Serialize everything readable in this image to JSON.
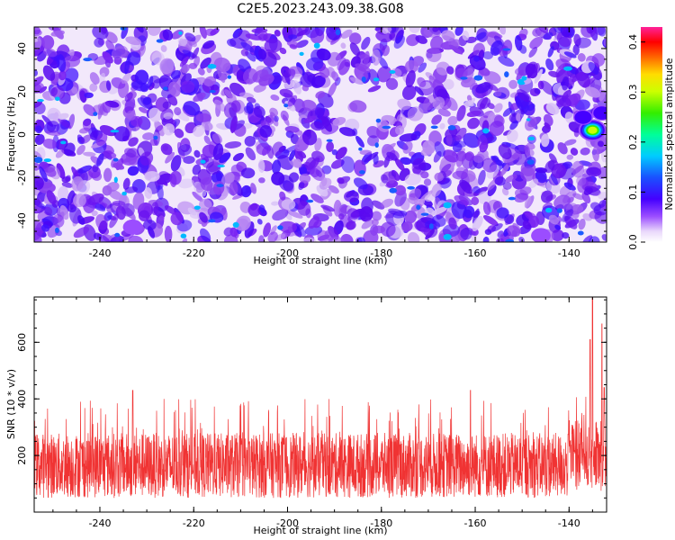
{
  "figure": {
    "title": "C2E5.2023.243.09.38.G08"
  },
  "chart_data": [
    {
      "type": "heatmap",
      "xlabel": "Height of straight line (km)",
      "ylabel": "Frequency (Hz)",
      "xlim": [
        -254,
        -132
      ],
      "ylim": [
        -50,
        50
      ],
      "xticks": [
        "-240",
        "-220",
        "-200",
        "-180",
        "-160",
        "-140"
      ],
      "yticks": [
        "40",
        "20",
        "0",
        "-20",
        "-40"
      ],
      "colorbar": {
        "label": "Normalized spectral amplitude",
        "range": [
          0.0,
          0.43
        ],
        "ticks": [
          "0.0",
          "0.1",
          "0.2",
          "0.3",
          "0.4"
        ],
        "colormap": "rainbow (white → violet → blue → cyan → green → yellow → red → magenta)"
      },
      "hotspots": [
        {
          "x": -135,
          "y": 2,
          "value": 0.33
        },
        {
          "x": -133,
          "y": 10,
          "value": 0.12
        },
        {
          "x": -137,
          "y": 8,
          "value": 0.1
        },
        {
          "x": -146,
          "y": -47,
          "value": 0.08
        },
        {
          "x": -233,
          "y": -43,
          "value": 0.07
        }
      ],
      "background_level": 0.04,
      "grid": false
    },
    {
      "type": "line",
      "xlabel": "Height of straight line (km)",
      "ylabel": "SNR (10 * v/v)",
      "xlim": [
        -254,
        -132
      ],
      "ylim": [
        0,
        760
      ],
      "xticks": [
        "-240",
        "-220",
        "-200",
        "-180",
        "-160",
        "-140"
      ],
      "yticks": [
        "200",
        "400",
        "600"
      ],
      "series": [
        {
          "color": "#f03333",
          "typical_range": [
            50,
            280
          ],
          "peak_spikes_upper": 400
        }
      ],
      "peaks": [
        {
          "x": -135,
          "y": 760
        },
        {
          "x": -135.5,
          "y": 610
        },
        {
          "x": -133,
          "y": 665
        },
        {
          "x": -132.5,
          "y": 440
        },
        {
          "x": -233,
          "y": 430
        },
        {
          "x": -161,
          "y": 430
        }
      ],
      "grid": false
    }
  ]
}
